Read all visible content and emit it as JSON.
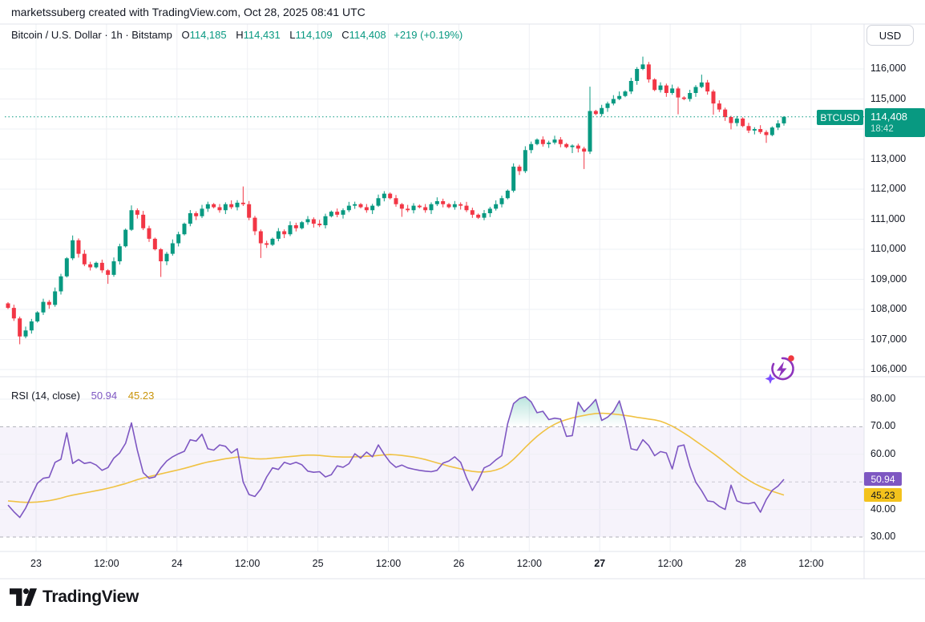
{
  "attribution": "marketssuberg created with TradingView.com, Oct 28, 2025 08:41 UTC",
  "toolbar": {
    "currency_button": "USD"
  },
  "legend": {
    "title": "Bitcoin / U.S. Dollar · 1h · Bitstamp",
    "ohlc": [
      {
        "k": "O",
        "v": "114,185"
      },
      {
        "k": "H",
        "v": "114,431"
      },
      {
        "k": "L",
        "v": "114,109"
      },
      {
        "k": "C",
        "v": "114,408"
      }
    ],
    "change": "+219 (+0.19%)"
  },
  "price_label": {
    "symbol": "BTCUSD",
    "price": "114,408",
    "countdown": "18:42"
  },
  "rsi_legend": {
    "title": "RSI (14, close)",
    "rsi_value": "50.94",
    "ma_value": "45.23"
  },
  "footer": {
    "brand": "TradingView"
  },
  "colors": {
    "up": "#089981",
    "down": "#f23645",
    "grid": "#eef0f4",
    "separator": "#e0e3eb",
    "current_price": "#089981",
    "rsi_line": "#7e57c2",
    "ma_line": "#f0c243",
    "rsi_band": "rgba(126,87,194,0.07)",
    "dashed": "#9598a1",
    "overbought_fill": "#22ab94",
    "text": "#131722"
  },
  "chart_data": {
    "type": "candlestick",
    "symbol": "Bitcoin / U.S. Dollar",
    "exchange": "Bitstamp",
    "interval": "1h",
    "current_price": 114408,
    "countdown": "18:42",
    "price_axis": {
      "ticks": [
        116000,
        115000,
        113000,
        112000,
        111000,
        110000,
        109000,
        108000,
        107000,
        106000
      ],
      "min": 105700,
      "max": 116500
    },
    "time_axis": {
      "labels": [
        "23",
        "12:00",
        "24",
        "12:00",
        "25",
        "12:00",
        "26",
        "12:00",
        "27",
        "12:00",
        "28",
        "12:00"
      ],
      "bold_index": 8
    },
    "candles": {
      "first_open": 108200,
      "closes": [
        108050,
        107700,
        107100,
        107300,
        107600,
        107900,
        108250,
        108150,
        108600,
        109100,
        109700,
        110300,
        109850,
        109500,
        109400,
        109550,
        109300,
        109150,
        109600,
        110100,
        110650,
        111300,
        111150,
        110700,
        110350,
        110000,
        109600,
        109850,
        110200,
        110500,
        110850,
        111200,
        111100,
        111350,
        111500,
        111400,
        111300,
        111500,
        111400,
        111550,
        111500,
        111050,
        110600,
        110200,
        110150,
        110350,
        110600,
        110500,
        110800,
        110700,
        110900,
        111000,
        110850,
        110800,
        111100,
        111250,
        111150,
        111300,
        111450,
        111500,
        111400,
        111300,
        111450,
        111700,
        111850,
        111700,
        111500,
        111350,
        111300,
        111450,
        111400,
        111300,
        111500,
        111600,
        111500,
        111400,
        111500,
        111450,
        111300,
        111150,
        111050,
        111200,
        111350,
        111500,
        111700,
        111950,
        112750,
        112600,
        113300,
        113500,
        113650,
        113500,
        113550,
        113650,
        113500,
        113400,
        113450,
        113350,
        113250,
        114600,
        114500,
        114700,
        114850,
        115000,
        115100,
        115250,
        115600,
        116000,
        116150,
        115650,
        115300,
        115450,
        115200,
        115350,
        115050,
        115000,
        115200,
        115400,
        115550,
        115250,
        114850,
        114650,
        114400,
        114200,
        114350,
        114100,
        113950,
        114000,
        113900,
        113800,
        114050,
        114189,
        114408
      ],
      "wicks": {
        "2": [
          60,
          260
        ],
        "11": [
          160,
          60
        ],
        "17": [
          40,
          300
        ],
        "21": [
          160,
          40
        ],
        "26": [
          40,
          520
        ],
        "40": [
          540,
          60
        ],
        "43": [
          60,
          490
        ],
        "63": [
          120,
          40
        ],
        "67": [
          40,
          270
        ],
        "86": [
          110,
          60
        ],
        "96": [
          40,
          200
        ],
        "98": [
          60,
          580
        ],
        "99": [
          810,
          80
        ],
        "104": [
          150,
          40
        ],
        "108": [
          260,
          40
        ],
        "114": [
          60,
          560
        ],
        "118": [
          260,
          40
        ],
        "120": [
          60,
          370
        ],
        "123": [
          40,
          210
        ],
        "129": [
          60,
          260
        ],
        "132": [
          23,
          76
        ]
      }
    },
    "rsi_pane": {
      "title": "RSI (14, close)",
      "period": 14,
      "source": "close",
      "last_value": 50.94,
      "last_ma": 45.23,
      "levels": {
        "upper": 70,
        "middle": 50,
        "lower": 30
      },
      "axis_ticks": [
        80,
        70,
        60,
        40,
        30
      ],
      "values": [
        41.6,
        39.2,
        37.1,
        40.5,
        45.0,
        49.5,
        51.3,
        51.7,
        57.1,
        58.2,
        67.8,
        56.7,
        58.1,
        56.7,
        57.1,
        56.1,
        54.2,
        55.2,
        58.6,
        60.5,
        64.0,
        71.4,
        61.5,
        53.3,
        51.3,
        51.8,
        55.1,
        57.6,
        59.1,
        60.2,
        61.1,
        65.3,
        64.8,
        67.3,
        62.0,
        61.5,
        63.4,
        62.9,
        60.5,
        62.0,
        50.0,
        45.4,
        44.7,
        47.4,
        51.8,
        55.1,
        54.5,
        57.1,
        56.4,
        57.1,
        56.2,
        53.9,
        53.5,
        53.7,
        51.8,
        52.6,
        55.8,
        55.3,
        56.6,
        60.2,
        58.6,
        60.8,
        59.1,
        63.4,
        60.0,
        57.1,
        55.3,
        56.1,
        55.1,
        54.6,
        54.2,
        53.9,
        53.7,
        54.2,
        56.8,
        57.6,
        59.1,
        57.1,
        51.5,
        46.9,
        50.5,
        55.1,
        56.1,
        58.0,
        59.5,
        71.1,
        78.4,
        80.2,
        80.9,
        79.0,
        75.1,
        75.6,
        72.6,
        73.1,
        72.8,
        66.5,
        66.8,
        78.9,
        75.5,
        77.5,
        79.9,
        72.3,
        73.5,
        75.5,
        79.4,
        72.0,
        62.0,
        61.5,
        65.3,
        63.2,
        59.5,
        61.0,
        60.5,
        54.7,
        62.9,
        63.4,
        55.6,
        49.9,
        46.8,
        43.1,
        42.8,
        41.1,
        40.0,
        48.8,
        43.1,
        42.3,
        42.1,
        42.6,
        39.0,
        43.6,
        46.9,
        48.5,
        50.94
      ],
      "ma": [
        43.1,
        42.9,
        42.7,
        42.6,
        42.6,
        42.7,
        42.9,
        43.2,
        43.6,
        44.1,
        44.7,
        45.2,
        45.6,
        46.0,
        46.4,
        46.8,
        47.2,
        47.7,
        48.2,
        48.8,
        49.4,
        50.1,
        50.8,
        51.4,
        51.9,
        52.4,
        52.9,
        53.4,
        53.9,
        54.4,
        54.9,
        55.5,
        56.1,
        56.7,
        57.2,
        57.6,
        58.0,
        58.4,
        58.7,
        59.0,
        58.9,
        58.6,
        58.4,
        58.3,
        58.4,
        58.6,
        58.8,
        59.0,
        59.2,
        59.4,
        59.6,
        59.7,
        59.7,
        59.6,
        59.4,
        59.2,
        59.1,
        59.0,
        59.0,
        59.1,
        59.2,
        59.3,
        59.4,
        59.6,
        59.8,
        59.9,
        59.8,
        59.6,
        59.3,
        59.0,
        58.6,
        58.1,
        57.5,
        56.9,
        56.3,
        55.7,
        55.2,
        54.7,
        54.2,
        53.8,
        53.6,
        53.6,
        53.8,
        54.3,
        55.1,
        56.4,
        58.2,
        60.3,
        62.5,
        64.6,
        66.5,
        68.2,
        69.7,
        70.9,
        71.9,
        72.6,
        73.2,
        73.7,
        74.1,
        74.5,
        74.8,
        74.9,
        74.8,
        74.6,
        74.4,
        74.1,
        73.8,
        73.4,
        73.1,
        72.8,
        72.5,
        72.0,
        71.2,
        70.2,
        69.0,
        67.7,
        66.3,
        64.8,
        63.3,
        61.8,
        60.3,
        58.7,
        57.0,
        55.3,
        53.6,
        52.0,
        50.6,
        49.4,
        48.3,
        47.4,
        46.6,
        45.9,
        45.23
      ]
    }
  }
}
